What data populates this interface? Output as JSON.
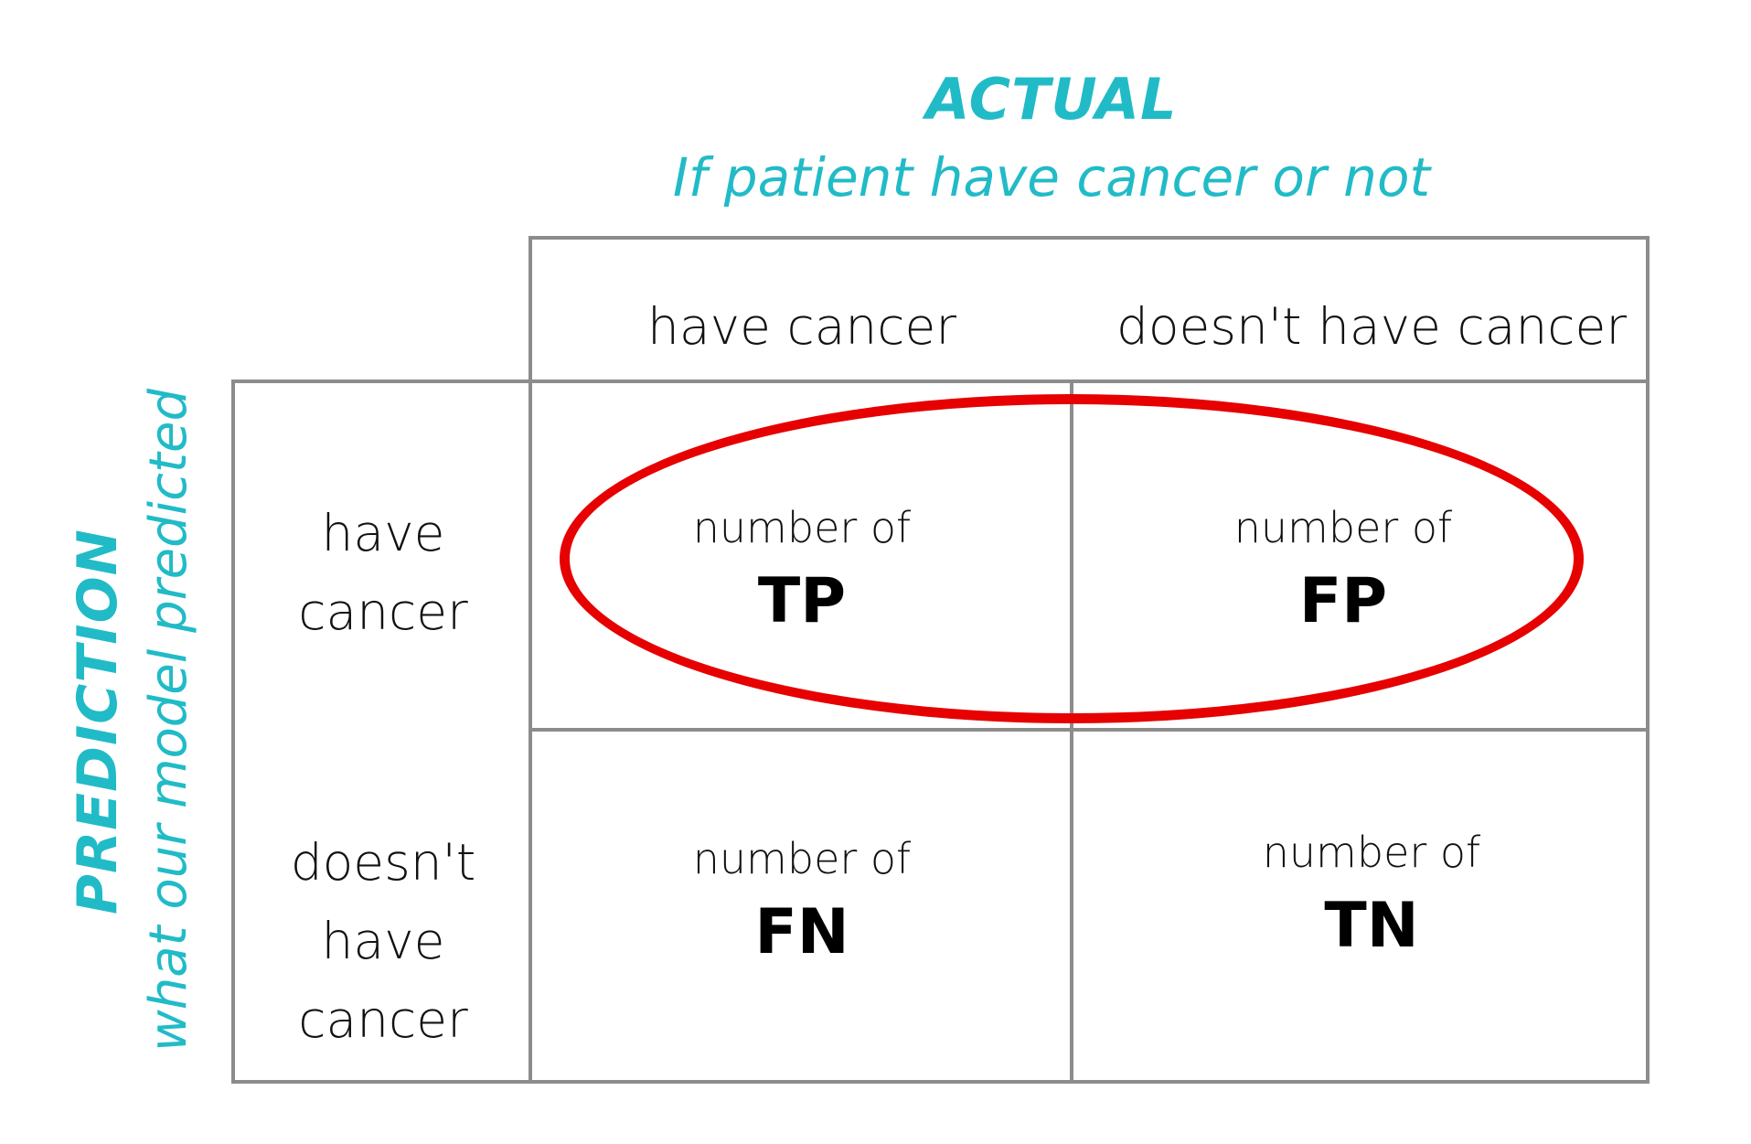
{
  "actual": {
    "title": "ACTUAL",
    "subtitle": "If patient have cancer or not"
  },
  "prediction": {
    "title": "PREDICTION",
    "subtitle": "what our model predicted"
  },
  "columns": [
    "have cancer",
    "doesn't have cancer"
  ],
  "rows": [
    "have cancer",
    "doesn't have cancer"
  ],
  "cells": {
    "tp": {
      "caption": "number of",
      "label": "TP"
    },
    "fp": {
      "caption": "number of",
      "label": "FP"
    },
    "fn": {
      "caption": "number of",
      "label": "FN"
    },
    "tn": {
      "caption": "number of",
      "label": "TN"
    }
  },
  "colors": {
    "accent": "#21BBC7",
    "highlight": "#E60000",
    "grid": "#8C8C8C"
  }
}
